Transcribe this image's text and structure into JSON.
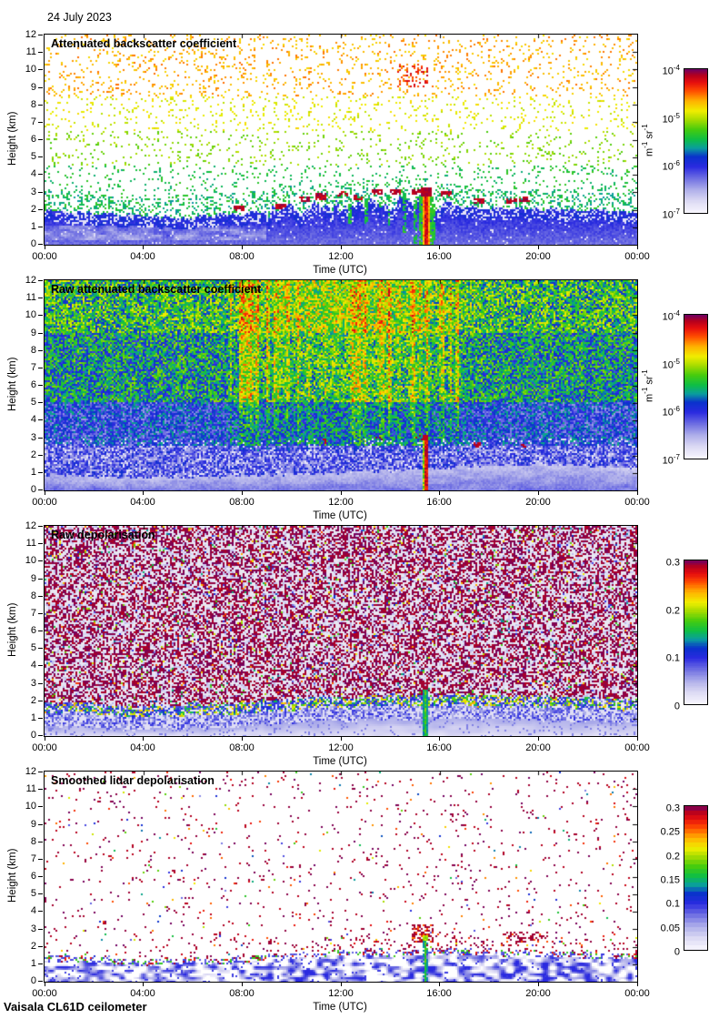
{
  "header": {
    "date": "24 July 2023"
  },
  "footer": {
    "instrument": "Vaisala CL61D ceilometer"
  },
  "chart_data": {
    "type": "heatmap",
    "layout": "4 stacked time-height lidar quicklook panels, colorbar right of each",
    "x_axis": {
      "label": "Time (UTC)",
      "range_hours": [
        0,
        24
      ],
      "ticks": [
        "00:00",
        "04:00",
        "08:00",
        "12:00",
        "16:00",
        "20:00",
        "00:00"
      ]
    },
    "y_axis": {
      "label": "Height (km)",
      "range_km": [
        0,
        12
      ],
      "ticks": [
        "0",
        "1",
        "2",
        "3",
        "4",
        "5",
        "6",
        "7",
        "8",
        "9",
        "10",
        "11",
        "12"
      ]
    },
    "colormap": {
      "stops": [
        [
          0.0,
          "#f8f6fe"
        ],
        [
          0.08,
          "#dcdaf4"
        ],
        [
          0.16,
          "#aeaeea"
        ],
        [
          0.24,
          "#6e6ee2"
        ],
        [
          0.32,
          "#2a2ae0"
        ],
        [
          0.39,
          "#0a32cc"
        ],
        [
          0.45,
          "#0a9e9e"
        ],
        [
          0.51,
          "#0ebe46"
        ],
        [
          0.58,
          "#46cc0e"
        ],
        [
          0.65,
          "#aadc00"
        ],
        [
          0.71,
          "#f0ee00"
        ],
        [
          0.78,
          "#ffb200"
        ],
        [
          0.85,
          "#ff4e00"
        ],
        [
          0.91,
          "#e60e0e"
        ],
        [
          0.96,
          "#b4001e"
        ],
        [
          1.0,
          "#700062"
        ]
      ]
    },
    "panels": [
      {
        "id": "attenuated_backscatter",
        "title": "Attenuated backscatter coefficient",
        "seed": 11,
        "colorbar": {
          "scale": "log",
          "quantize": 0,
          "ticks": [
            {
              "base": "10",
              "exp": "-4",
              "frac": 0
            },
            {
              "base": "10",
              "exp": "-5",
              "frac": 0.3333
            },
            {
              "base": "10",
              "exp": "-6",
              "frac": 0.6667
            },
            {
              "base": "10",
              "exp": "-7",
              "frac": 1
            }
          ],
          "unit_parts": [
            {
              "t": "m"
            },
            {
              "t": "-1",
              "sup": true
            },
            {
              "t": " sr"
            },
            {
              "t": "-1",
              "sup": true
            }
          ]
        },
        "description": "White background; sparse aerosol speckles (orange aloft, yellow mid, green 2-5 km); solid blue boundary layer below ~2 km with pale wisps before 09:00; dark-red cloud bases 2.5-3 km from 08:00-19:30; rainbow precipitation streak to the ground near 15:30.",
        "features": {
          "band_top_km": [
            [
              0,
              2.0
            ],
            [
              3,
              1.7
            ],
            [
              6,
              1.6
            ],
            [
              9,
              1.9
            ],
            [
              12,
              2.2
            ],
            [
              15,
              2.4
            ],
            [
              16,
              2.2
            ],
            [
              18,
              2.1
            ],
            [
              21,
              2.0
            ],
            [
              24,
              1.9
            ]
          ],
          "band_spike_hours": [
            9,
            16.5
          ],
          "clouds": [
            {
              "t": 7.9,
              "h": 2.1
            },
            {
              "t": 9.6,
              "h": 2.2
            },
            {
              "t": 10.5,
              "h": 2.6
            },
            {
              "t": 11.2,
              "h": 2.75
            },
            {
              "t": 12.1,
              "h": 2.9
            },
            {
              "t": 12.7,
              "h": 2.7
            },
            {
              "t": 13.5,
              "h": 3.0
            },
            {
              "t": 14.2,
              "h": 3.05
            },
            {
              "t": 15.1,
              "h": 3.0
            },
            {
              "t": 16.3,
              "h": 2.9
            },
            {
              "t": 17.6,
              "h": 2.5
            },
            {
              "t": 18.9,
              "h": 2.5
            },
            {
              "t": 19.4,
              "h": 2.55
            }
          ],
          "virga": [
            {
              "t": 12.35,
              "top": 2.6,
              "bot": 1.2
            },
            {
              "t": 13.05,
              "top": 2.7,
              "bot": 0.9
            },
            {
              "t": 13.95,
              "top": 2.85,
              "bot": 1.0
            },
            {
              "t": 14.6,
              "top": 2.95,
              "bot": 0.7
            },
            {
              "t": 15.05,
              "top": 2.5,
              "bot": 0.1
            },
            {
              "t": 15.75,
              "top": 2.4,
              "bot": 0.3
            }
          ],
          "rain": {
            "t": 15.45,
            "top_km": 3.15,
            "core_w": 0.09,
            "mid_w": 0.16,
            "fringe_w": 0.3
          },
          "high_red": {
            "t0": 14.3,
            "t1": 15.5,
            "h0": 9.0,
            "h1": 10.3
          }
        }
      },
      {
        "id": "raw_attenuated_backscatter",
        "title": "Raw attenuated backscatter coefficient",
        "seed": 23,
        "colorbar": {
          "scale": "log",
          "quantize": 0,
          "ticks": [
            {
              "base": "10",
              "exp": "-4",
              "frac": 0
            },
            {
              "base": "10",
              "exp": "-5",
              "frac": 0.3333
            },
            {
              "base": "10",
              "exp": "-6",
              "frac": 0.6667
            },
            {
              "base": "10",
              "exp": "-7",
              "frac": 1
            }
          ],
          "unit_parts": [
            {
              "t": "m"
            },
            {
              "t": "-1",
              "sup": true
            },
            {
              "t": " sr"
            },
            {
              "t": "-1",
              "sup": true
            }
          ]
        },
        "description": "Dense multicolour noise over the whole troposphere: blue below 5 km with white speckles, green/yellow aloft, orange-red convective columns 08:00-16:30; pale smooth surface layer below ~1 km; saturated red precipitation streak near 15:30.",
        "features": {
          "surf_top_km": [
            [
              0,
              0.9
            ],
            [
              4,
              0.7
            ],
            [
              8,
              0.8
            ],
            [
              12,
              1.0
            ],
            [
              16,
              1.25
            ],
            [
              20,
              1.5
            ],
            [
              24,
              1.3
            ]
          ],
          "day_bump": {
            "center": 12.3,
            "sigma": 4.2,
            "amp": 0.1
          },
          "streak_hours": [
            7.5,
            16.8
          ],
          "clouds": [
            {
              "t": 11.3,
              "h": 2.8
            },
            {
              "t": 13.6,
              "h": 2.95
            },
            {
              "t": 15.2,
              "h": 3.0
            },
            {
              "t": 17.5,
              "h": 2.6
            },
            {
              "t": 19.5,
              "h": 2.55
            }
          ],
          "rain": {
            "t": 15.43,
            "top_km": 3.1,
            "core_w": 0.07
          }
        }
      },
      {
        "id": "raw_depolarisation",
        "title": "Raw depolarisation",
        "seed": 37,
        "colorbar": {
          "scale": "linear",
          "quantize": 64,
          "ticks": [
            {
              "base": "0.3",
              "exp": "",
              "frac": 0
            },
            {
              "base": "0.2",
              "exp": "",
              "frac": 0.3333
            },
            {
              "base": "0.1",
              "exp": "",
              "frac": 0.6667
            },
            {
              "base": "0",
              "exp": "",
              "frac": 1
            }
          ]
        },
        "description": "Dense magenta noise (high depolarisation) on pale grey everywhere above ~2 km with sparse rainbow speckles; rainbow transition line at the boundary-layer top; pale blue low-depolarisation surface layer; green precipitation streak near 15:30 with magenta cap at 3 km.",
        "features": {
          "band_top_km": [
            [
              0,
              1.5
            ],
            [
              4,
              1.25
            ],
            [
              8,
              1.5
            ],
            [
              12,
              1.8
            ],
            [
              16,
              1.9
            ],
            [
              20,
              1.8
            ],
            [
              24,
              1.6
            ]
          ],
          "purple_density": 0.44,
          "streak": {
            "t": 15.42,
            "top_km": 2.65,
            "w": 0.07
          },
          "cap": {
            "t": 15.42,
            "h0": 2.6,
            "h1": 3.2,
            "w": 0.15
          }
        }
      },
      {
        "id": "smoothed_lidar_depolarisation",
        "title": "Smoothed lidar depolarisation",
        "seed": 51,
        "colorbar": {
          "scale": "linear",
          "quantize": 32,
          "ticks": [
            {
              "base": "0.3",
              "exp": "",
              "frac": 0
            },
            {
              "base": "0.25",
              "exp": "",
              "frac": 0.1667
            },
            {
              "base": "0.2",
              "exp": "",
              "frac": 0.3333
            },
            {
              "base": "0.15",
              "exp": "",
              "frac": 0.5
            },
            {
              "base": "0.1",
              "exp": "",
              "frac": 0.6667
            },
            {
              "base": "0.05",
              "exp": "",
              "frac": 0.8333
            },
            {
              "base": "0",
              "exp": "",
              "frac": 1
            }
          ]
        },
        "description": "Mostly white with sparse magenta dots; pale blue mottled boundary layer below ~1.5 km with a colourful speckle line at its top; magenta dot clusters near 2.5-3 km around 15:30 and 19:00-20:30; bright green precipitation streak to the ground near 15:30.",
        "features": {
          "band_top_km": [
            [
              0,
              1.4
            ],
            [
              4,
              1.1
            ],
            [
              8,
              1.3
            ],
            [
              12,
              1.6
            ],
            [
              16,
              1.7
            ],
            [
              20,
              1.6
            ],
            [
              24,
              1.45
            ]
          ],
          "dot_density": 0.035,
          "near_band_density": {
            "before_10h": 0.06,
            "after_10h": 0.13
          },
          "clusters": [
            {
              "t0": 14.9,
              "t1": 15.75,
              "h0": 2.2,
              "h1": 3.25,
              "d": 0.5
            },
            {
              "t0": 18.7,
              "t1": 20.4,
              "h0": 2.2,
              "h1": 2.9,
              "d": 0.3
            },
            {
              "t0": 12.4,
              "t1": 12.95,
              "h0": 2.3,
              "h1": 2.7,
              "d": 0.28
            },
            {
              "t0": 8.8,
              "t1": 9.35,
              "h0": 2.2,
              "h1": 2.5,
              "d": 0.2
            }
          ],
          "streak": {
            "t": 15.42,
            "top_km": 2.5,
            "w": 0.06
          }
        }
      }
    ]
  }
}
